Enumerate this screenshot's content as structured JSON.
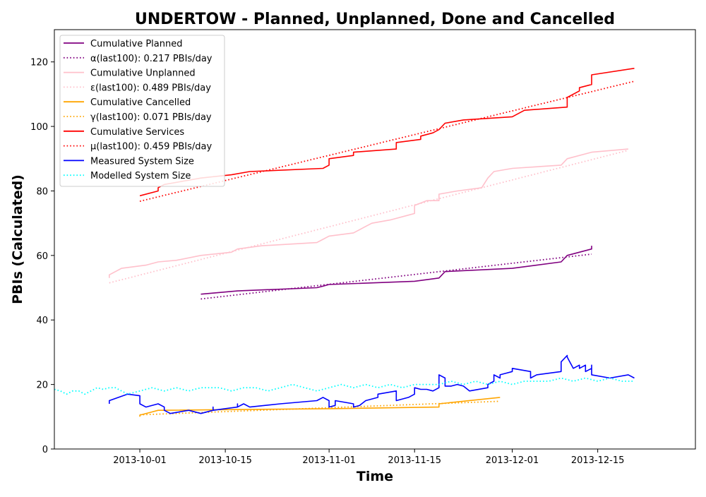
{
  "chart_data": {
    "type": "line",
    "title": "UNDERTOW - Planned, Unplanned, Done  and Cancelled",
    "xlabel": "Time",
    "ylabel": "PBIs (Calculated)",
    "xlim": [
      "2013-09-17",
      "2013-12-31"
    ],
    "ylim": [
      0,
      130
    ],
    "grid": false,
    "legend_position": "top-left",
    "x_ticks": [
      "2013-10-01",
      "2013-10-15",
      "2013-11-01",
      "2013-11-15",
      "2013-12-01",
      "2013-12-15"
    ],
    "y_ticks": [
      0,
      20,
      40,
      60,
      80,
      100,
      120
    ],
    "series": [
      {
        "name": "Cumulative Planned",
        "color": "#800080",
        "style": "solid",
        "points": [
          [
            "2013-10-11",
            48
          ],
          [
            "2013-10-17",
            49
          ],
          [
            "2013-10-30",
            50
          ],
          [
            "2013-10-31",
            50.5
          ],
          [
            "2013-11-01",
            51
          ],
          [
            "2013-11-15",
            52
          ],
          [
            "2013-11-19",
            53
          ],
          [
            "2013-11-20",
            55
          ],
          [
            "2013-12-01",
            56
          ],
          [
            "2013-12-05",
            57
          ],
          [
            "2013-12-09",
            58
          ],
          [
            "2013-12-10",
            60
          ],
          [
            "2013-12-14",
            62
          ],
          [
            "2013-12-14",
            63
          ]
        ]
      },
      {
        "name": "α(last100): 0.217 PBIs/day",
        "color": "#800080",
        "style": "dotted",
        "points": [
          [
            "2013-10-11",
            46.5
          ],
          [
            "2013-12-14",
            60.4
          ]
        ]
      },
      {
        "name": "Cumulative Unplanned",
        "color": "#ffc0cb",
        "style": "solid",
        "points": [
          [
            "2013-09-26",
            53
          ],
          [
            "2013-09-26",
            54
          ],
          [
            "2013-09-28",
            56
          ],
          [
            "2013-10-02",
            57
          ],
          [
            "2013-10-04",
            58
          ],
          [
            "2013-10-07",
            58.5
          ],
          [
            "2013-10-11",
            60
          ],
          [
            "2013-10-16",
            61
          ],
          [
            "2013-10-17",
            62
          ],
          [
            "2013-10-21",
            63
          ],
          [
            "2013-10-30",
            64
          ],
          [
            "2013-10-31",
            65
          ],
          [
            "2013-11-01",
            66
          ],
          [
            "2013-11-05",
            67
          ],
          [
            "2013-11-06",
            68
          ],
          [
            "2013-11-07",
            69
          ],
          [
            "2013-11-08",
            70
          ],
          [
            "2013-11-11",
            71
          ],
          [
            "2013-11-14",
            72.5
          ],
          [
            "2013-11-15",
            73
          ],
          [
            "2013-11-15",
            75.5
          ],
          [
            "2013-11-17",
            77
          ],
          [
            "2013-11-19",
            77
          ],
          [
            "2013-11-19",
            79
          ],
          [
            "2013-11-22",
            80
          ],
          [
            "2013-11-26",
            81
          ],
          [
            "2013-11-27",
            84
          ],
          [
            "2013-11-28",
            86
          ],
          [
            "2013-12-01",
            87
          ],
          [
            "2013-12-09",
            88
          ],
          [
            "2013-12-10",
            90
          ],
          [
            "2013-12-14",
            92
          ],
          [
            "2013-12-20",
            93
          ]
        ]
      },
      {
        "name": "ε(last100): 0.489 PBIs/day",
        "color": "#ffc0cb",
        "style": "dotted",
        "points": [
          [
            "2013-09-26",
            51.5
          ],
          [
            "2013-12-20",
            92.6
          ]
        ]
      },
      {
        "name": "Cumulative Cancelled",
        "color": "#ffa500",
        "style": "solid",
        "points": [
          [
            "2013-10-01",
            10
          ],
          [
            "2013-10-01",
            10.5
          ],
          [
            "2013-10-03",
            11.5
          ],
          [
            "2013-10-04",
            12
          ],
          [
            "2013-11-01",
            12.5
          ],
          [
            "2013-11-19",
            13
          ],
          [
            "2013-11-19",
            14
          ],
          [
            "2013-11-29",
            16
          ]
        ]
      },
      {
        "name": "γ(last100): 0.071 PBIs/day",
        "color": "#ffa500",
        "style": "dotted",
        "points": [
          [
            "2013-10-01",
            10.6
          ],
          [
            "2013-11-29",
            14.8
          ]
        ]
      },
      {
        "name": "Cumulative Services",
        "color": "#ff0000",
        "style": "solid",
        "points": [
          [
            "2013-10-01",
            78.5
          ],
          [
            "2013-10-04",
            80
          ],
          [
            "2013-10-04",
            81
          ],
          [
            "2013-10-05",
            82
          ],
          [
            "2013-10-11",
            84
          ],
          [
            "2013-10-16",
            85
          ],
          [
            "2013-10-19",
            86
          ],
          [
            "2013-10-31",
            87
          ],
          [
            "2013-11-01",
            88
          ],
          [
            "2013-11-01",
            90
          ],
          [
            "2013-11-05",
            91
          ],
          [
            "2013-11-05",
            92
          ],
          [
            "2013-11-12",
            93
          ],
          [
            "2013-11-12",
            95
          ],
          [
            "2013-11-16",
            96
          ],
          [
            "2013-11-16",
            97
          ],
          [
            "2013-11-18",
            98
          ],
          [
            "2013-11-19",
            99
          ],
          [
            "2013-11-20",
            101
          ],
          [
            "2013-11-23",
            102
          ],
          [
            "2013-12-01",
            103
          ],
          [
            "2013-12-02",
            104
          ],
          [
            "2013-12-03",
            105
          ],
          [
            "2013-12-10",
            106
          ],
          [
            "2013-12-10",
            109
          ],
          [
            "2013-12-12",
            111
          ],
          [
            "2013-12-12",
            112
          ],
          [
            "2013-12-14",
            113
          ],
          [
            "2013-12-14",
            116
          ],
          [
            "2013-12-21",
            118
          ]
        ]
      },
      {
        "name": "μ(last100): 0.459 PBIs/day",
        "color": "#ff0000",
        "style": "dotted",
        "points": [
          [
            "2013-10-01",
            76.8
          ],
          [
            "2013-12-21",
            114
          ]
        ]
      },
      {
        "name": "Measured System Size",
        "color": "#0000ff",
        "style": "solid",
        "points": [
          [
            "2013-09-26",
            14
          ],
          [
            "2013-09-26",
            15
          ],
          [
            "2013-09-29",
            17
          ],
          [
            "2013-10-01",
            16.5
          ],
          [
            "2013-10-01",
            14
          ],
          [
            "2013-10-02",
            13
          ],
          [
            "2013-10-04",
            14
          ],
          [
            "2013-10-05",
            13
          ],
          [
            "2013-10-05",
            12
          ],
          [
            "2013-10-06",
            11
          ],
          [
            "2013-10-09",
            12
          ],
          [
            "2013-10-11",
            11
          ],
          [
            "2013-10-13",
            12
          ],
          [
            "2013-10-13",
            13
          ],
          [
            "2013-10-13",
            12
          ],
          [
            "2013-10-17",
            13
          ],
          [
            "2013-10-17",
            14
          ],
          [
            "2013-10-17",
            13
          ],
          [
            "2013-10-18",
            14
          ],
          [
            "2013-10-19",
            13
          ],
          [
            "2013-10-24",
            14
          ],
          [
            "2013-10-30",
            15
          ],
          [
            "2013-10-31",
            16
          ],
          [
            "2013-11-01",
            15
          ],
          [
            "2013-11-01",
            13
          ],
          [
            "2013-11-02",
            13.5
          ],
          [
            "2013-11-02",
            15
          ],
          [
            "2013-11-05",
            14
          ],
          [
            "2013-11-05",
            13
          ],
          [
            "2013-11-06",
            13.5
          ],
          [
            "2013-11-07",
            15
          ],
          [
            "2013-11-09",
            16
          ],
          [
            "2013-11-09",
            17
          ],
          [
            "2013-11-12",
            18
          ],
          [
            "2013-11-12",
            15
          ],
          [
            "2013-11-14",
            16
          ],
          [
            "2013-11-15",
            17
          ],
          [
            "2013-11-15",
            19
          ],
          [
            "2013-11-16",
            18.5
          ],
          [
            "2013-11-17",
            18.5
          ],
          [
            "2013-11-18",
            18
          ],
          [
            "2013-11-19",
            19
          ],
          [
            "2013-11-19",
            23
          ],
          [
            "2013-11-20",
            22
          ],
          [
            "2013-11-20",
            19.5
          ],
          [
            "2013-11-21",
            19.5
          ],
          [
            "2013-11-22",
            20
          ],
          [
            "2013-11-23",
            19.5
          ],
          [
            "2013-11-24",
            18
          ],
          [
            "2013-11-27",
            19
          ],
          [
            "2013-11-27",
            20
          ],
          [
            "2013-11-28",
            21
          ],
          [
            "2013-11-28",
            23
          ],
          [
            "2013-11-29",
            22
          ],
          [
            "2013-11-29",
            23
          ],
          [
            "2013-11-30",
            23.5
          ],
          [
            "2013-12-01",
            24
          ],
          [
            "2013-12-01",
            25
          ],
          [
            "2013-12-04",
            24
          ],
          [
            "2013-12-04",
            22
          ],
          [
            "2013-12-05",
            23
          ],
          [
            "2013-12-09",
            24
          ],
          [
            "2013-12-09",
            27
          ],
          [
            "2013-12-10",
            29
          ],
          [
            "2013-12-10",
            28.5
          ],
          [
            "2013-12-11",
            25
          ],
          [
            "2013-12-12",
            26
          ],
          [
            "2013-12-12",
            25
          ],
          [
            "2013-12-13",
            26
          ],
          [
            "2013-12-13",
            24
          ],
          [
            "2013-12-14",
            25
          ],
          [
            "2013-12-14",
            26
          ],
          [
            "2013-12-14",
            23
          ],
          [
            "2013-12-17",
            22
          ],
          [
            "2013-12-20",
            23
          ],
          [
            "2013-12-21",
            22
          ]
        ]
      },
      {
        "name": "Modelled System Size",
        "color": "#00ffff",
        "style": "dotted",
        "points": [
          [
            "2013-09-17",
            18.5
          ],
          [
            "2013-09-18",
            18
          ],
          [
            "2013-09-19",
            17
          ],
          [
            "2013-09-20",
            18
          ],
          [
            "2013-09-21",
            18
          ],
          [
            "2013-09-22",
            17
          ],
          [
            "2013-09-23",
            18
          ],
          [
            "2013-09-24",
            19
          ],
          [
            "2013-09-25",
            18.5
          ],
          [
            "2013-09-26",
            19
          ],
          [
            "2013-09-27",
            19
          ],
          [
            "2013-09-28",
            18
          ],
          [
            "2013-09-29",
            17
          ],
          [
            "2013-10-01",
            18
          ],
          [
            "2013-10-03",
            19
          ],
          [
            "2013-10-05",
            18
          ],
          [
            "2013-10-07",
            19
          ],
          [
            "2013-10-09",
            18
          ],
          [
            "2013-10-11",
            19
          ],
          [
            "2013-10-14",
            19
          ],
          [
            "2013-10-16",
            18
          ],
          [
            "2013-10-18",
            19
          ],
          [
            "2013-10-20",
            19
          ],
          [
            "2013-10-22",
            18
          ],
          [
            "2013-10-24",
            19
          ],
          [
            "2013-10-26",
            20
          ],
          [
            "2013-10-28",
            19
          ],
          [
            "2013-10-30",
            18
          ],
          [
            "2013-11-01",
            19
          ],
          [
            "2013-11-03",
            20
          ],
          [
            "2013-11-05",
            19
          ],
          [
            "2013-11-07",
            20
          ],
          [
            "2013-11-09",
            19
          ],
          [
            "2013-11-11",
            20
          ],
          [
            "2013-11-13",
            19
          ],
          [
            "2013-11-15",
            20
          ],
          [
            "2013-11-17",
            20
          ],
          [
            "2013-11-19",
            20
          ],
          [
            "2013-11-21",
            21
          ],
          [
            "2013-11-23",
            20
          ],
          [
            "2013-11-25",
            21
          ],
          [
            "2013-11-27",
            20
          ],
          [
            "2013-11-29",
            21
          ],
          [
            "2013-12-01",
            20
          ],
          [
            "2013-12-03",
            21
          ],
          [
            "2013-12-05",
            21
          ],
          [
            "2013-12-07",
            21
          ],
          [
            "2013-12-09",
            22
          ],
          [
            "2013-12-11",
            21
          ],
          [
            "2013-12-13",
            22
          ],
          [
            "2013-12-15",
            21
          ],
          [
            "2013-12-17",
            22
          ],
          [
            "2013-12-19",
            21
          ],
          [
            "2013-12-21",
            21
          ]
        ]
      }
    ]
  }
}
